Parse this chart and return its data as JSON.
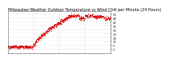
{
  "title": "Milwaukee Weather Outdoor Temperature vs Wind Chill per Minute (24 Hours)",
  "bg_color": "#ffffff",
  "plot_bg_color": "#ffffff",
  "grid_color": "#aaaaaa",
  "temp_color": "#dd0000",
  "windchill_color": "#dd0000",
  "ylim": [
    -6,
    58
  ],
  "yticks": [
    0,
    6,
    12,
    18,
    24,
    30,
    36,
    42,
    48,
    54
  ],
  "title_fontsize": 3.5,
  "tick_fontsize": 2.8,
  "n_points": 1440
}
